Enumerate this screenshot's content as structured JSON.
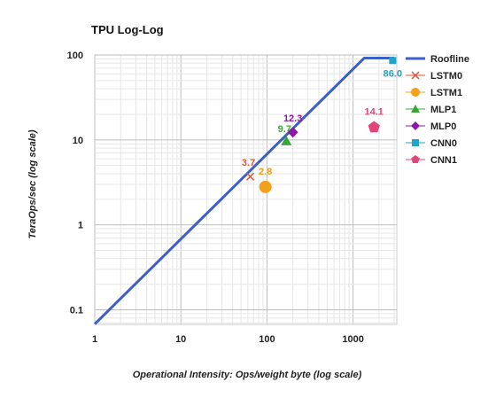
{
  "chart_data": {
    "type": "scatter",
    "title": "TPU Log-Log",
    "xlabel": "Operational Intensity: Ops/weight byte (log scale)",
    "ylabel": "TeraOps/sec (log scale)",
    "x_scale": "log",
    "y_scale": "log",
    "xlim": [
      1,
      3000
    ],
    "ylim": [
      0.06,
      100
    ],
    "x_ticks": [
      {
        "value": 1,
        "label": "1"
      },
      {
        "value": 10,
        "label": "10"
      },
      {
        "value": 100,
        "label": "100"
      },
      {
        "value": 1000,
        "label": "1000"
      }
    ],
    "y_ticks": [
      {
        "value": 0.1,
        "label": "0.1"
      },
      {
        "value": 1,
        "label": "1"
      },
      {
        "value": 10,
        "label": "10"
      },
      {
        "value": 100,
        "label": "100"
      }
    ],
    "grid": true,
    "legend_position": "right",
    "roofline": {
      "name": "Roofline",
      "color": "#3a5fc8",
      "points": [
        [
          1,
          0.068
        ],
        [
          1350,
          92
        ],
        [
          3000,
          92
        ]
      ]
    },
    "series": [
      {
        "name": "LSTM0",
        "marker": "x",
        "color": "#d9593a",
        "x": 64,
        "y": 3.7,
        "label": "3.7",
        "label_color": "#d9593a"
      },
      {
        "name": "LSTM1",
        "marker": "circle",
        "color": "#f5a01a",
        "x": 96,
        "y": 2.8,
        "label": "2.8",
        "label_color": "#f5a01a"
      },
      {
        "name": "MLP1",
        "marker": "triangle",
        "color": "#3aa537",
        "x": 168,
        "y": 9.7,
        "label": "9.7",
        "label_color": "#3aa537"
      },
      {
        "name": "MLP0",
        "marker": "diamond",
        "color": "#8a1aa5",
        "x": 200,
        "y": 12.3,
        "label": "12.3",
        "label_color": "#8a1aa5"
      },
      {
        "name": "CNN0",
        "marker": "square",
        "color": "#1fa3c6",
        "x": 2888,
        "y": 86.0,
        "label": "86.0",
        "label_color": "#1fa3c6"
      },
      {
        "name": "CNN1",
        "marker": "pentagon",
        "color": "#e2437a",
        "x": 1750,
        "y": 14.1,
        "label": "14.1",
        "label_color": "#e2437a"
      }
    ]
  }
}
